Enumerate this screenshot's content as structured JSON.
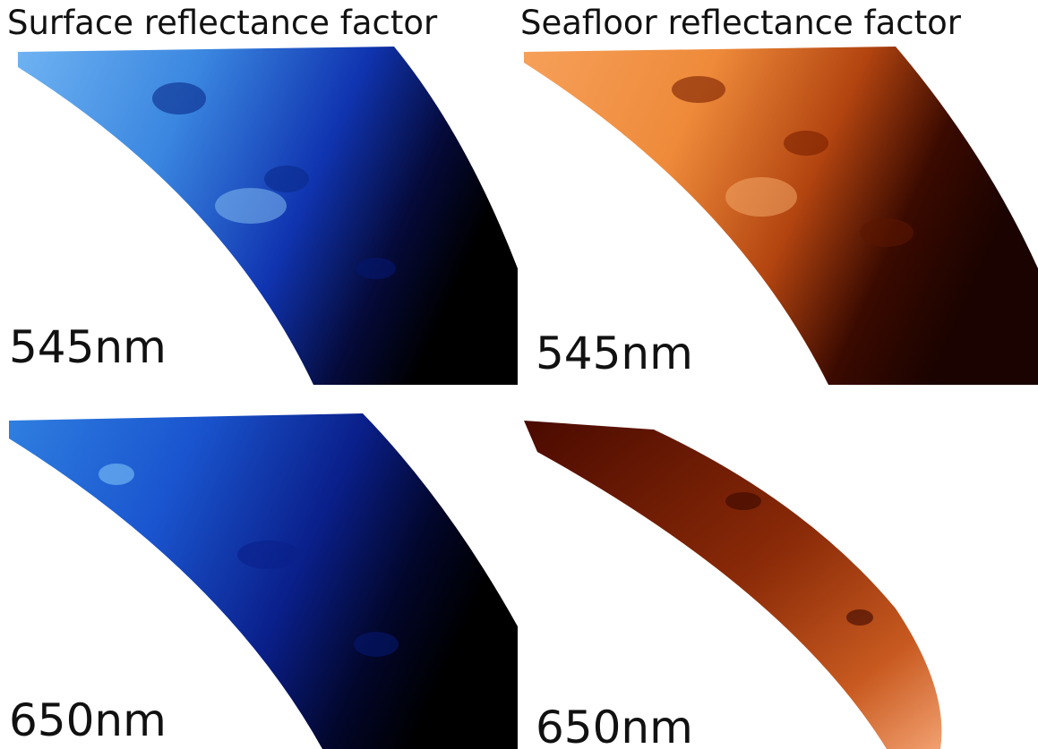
{
  "columns": [
    {
      "title": "Surface reflectance factor",
      "panels": [
        {
          "label": "545nm"
        },
        {
          "label": "650nm"
        }
      ]
    },
    {
      "title": "Seafloor reflectance factor",
      "panels": [
        {
          "label": "545nm"
        },
        {
          "label": "650nm"
        }
      ]
    }
  ]
}
